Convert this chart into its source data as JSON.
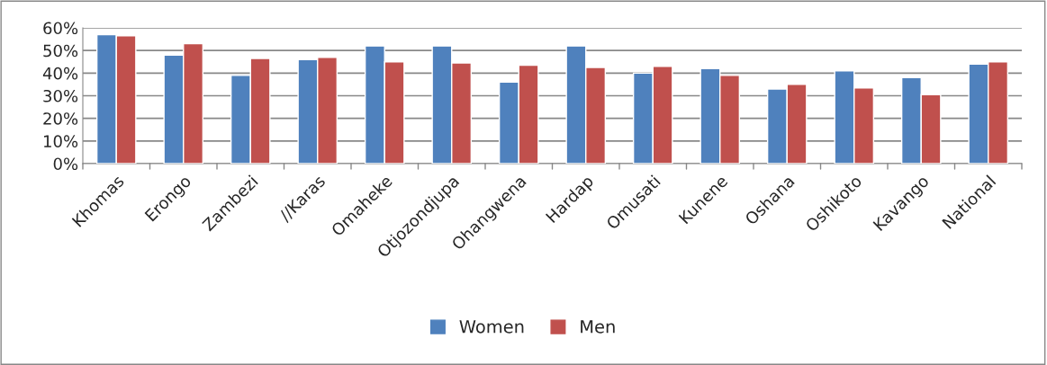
{
  "chart_data": {
    "type": "bar",
    "categories": [
      "Khomas",
      "Erongo",
      "Zambezi",
      "//Karas",
      "Omaheke",
      "Otjozondjupa",
      "Ohangwena",
      "Hardap",
      "Omusati",
      "Kunene",
      "Oshana",
      "Oshikoto",
      "Kavango",
      "National"
    ],
    "series": [
      {
        "name": "Women",
        "color": "#4f81bd",
        "values": [
          57,
          48,
          39,
          46,
          52,
          52,
          36,
          52,
          40,
          42,
          33,
          41,
          38,
          44
        ]
      },
      {
        "name": "Men",
        "color": "#c0504d",
        "values": [
          56.5,
          53,
          46.5,
          47,
          45,
          44.5,
          43.5,
          42.5,
          43,
          39,
          35,
          33.5,
          30.5,
          45
        ]
      }
    ],
    "ylim": [
      0,
      60
    ],
    "yticks": [
      {
        "value": 0,
        "label": "0%"
      },
      {
        "value": 10,
        "label": "10%"
      },
      {
        "value": 20,
        "label": "20%"
      },
      {
        "value": 30,
        "label": "30%"
      },
      {
        "value": 40,
        "label": "40%"
      },
      {
        "value": 50,
        "label": "50%"
      },
      {
        "value": 60,
        "label": "60%"
      }
    ],
    "grid": "y",
    "legend": "bottom"
  }
}
